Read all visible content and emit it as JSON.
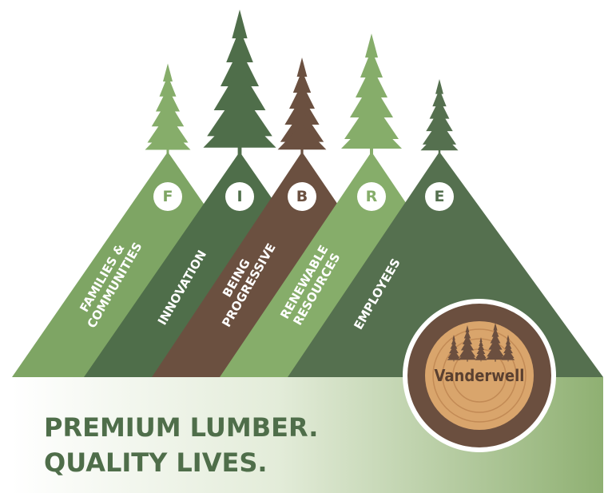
{
  "pillars": [
    {
      "letter": "F",
      "label": [
        "FAMILIES &",
        "COMMUNITIES"
      ]
    },
    {
      "letter": "I",
      "label": [
        "INNOVATION"
      ]
    },
    {
      "letter": "B",
      "label": [
        "BEING",
        "PROGRESSIVE"
      ]
    },
    {
      "letter": "R",
      "label": [
        "RENEWABLE",
        "RESOURCES"
      ]
    },
    {
      "letter": "E",
      "label": [
        "EMPLOYEES"
      ]
    }
  ],
  "tagline": [
    "PREMIUM LUMBER.",
    "QUALITY LIVES."
  ],
  "logo": "Vanderwell"
}
